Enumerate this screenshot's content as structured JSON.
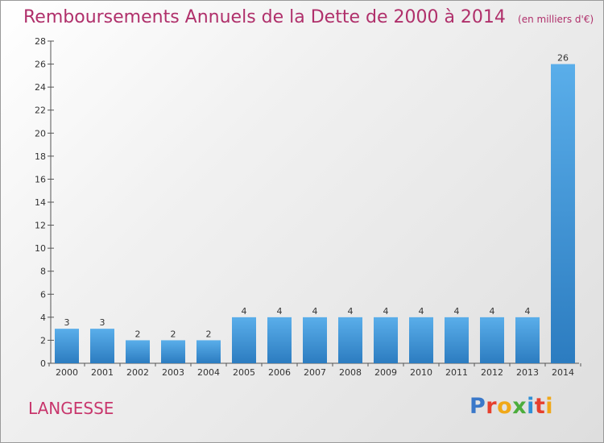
{
  "header": {
    "title": "Remboursements Annuels de la Dette de 2000 à 2014",
    "unit": "(en milliers d'€)"
  },
  "footer": {
    "commune": "LANGESSE",
    "logo_letters": [
      "P",
      "r",
      "o",
      "x",
      "i",
      "t",
      "i"
    ],
    "logo_colors": [
      "#3a78c9",
      "#e6402e",
      "#f0a818",
      "#4cad3c",
      "#2f8fd6",
      "#e6402e",
      "#f0a818"
    ]
  },
  "colors": {
    "bar_light": "#5aaeea",
    "bar_dark": "#2c7cc0",
    "title": "#b0306b"
  },
  "chart_data": {
    "type": "bar",
    "categories": [
      "2000",
      "2001",
      "2002",
      "2003",
      "2004",
      "2005",
      "2006",
      "2007",
      "2008",
      "2009",
      "2010",
      "2011",
      "2012",
      "2013",
      "2014"
    ],
    "values": [
      3,
      3,
      2,
      2,
      2,
      4,
      4,
      4,
      4,
      4,
      4,
      4,
      4,
      4,
      26
    ],
    "data_labels": [
      "3",
      "3",
      "2",
      "2",
      "2",
      "4",
      "4",
      "4",
      "4",
      "4",
      "4",
      "4",
      "4",
      "4",
      "26"
    ],
    "ylim": [
      0,
      28
    ],
    "yticks": [
      0,
      2,
      4,
      6,
      8,
      10,
      12,
      14,
      16,
      18,
      20,
      22,
      24,
      26,
      28
    ],
    "grid": false,
    "title": "Remboursements Annuels de la Dette de 2000 à 2014",
    "xlabel": "",
    "ylabel": ""
  }
}
